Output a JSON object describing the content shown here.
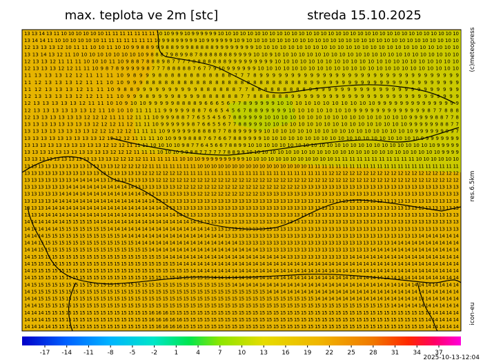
{
  "header": {
    "title": "max. teplota ve 2m [stc]",
    "date": "streda 15.10.2025"
  },
  "credits": {
    "copyright": "(c)meteopress",
    "resolution": "res.6.5km",
    "model": "icon-eu",
    "issued": "2025-10-13-12:04"
  },
  "map": {
    "rows": [
      "13 13 14 13 11 10 10 10 10 10 10 11 11 11 11 11 11 11 10 10 9 9 9 10 9 9 9 9 9 9 10 10 10 10 10 10 10 10 10 10 10 10 10 10 10 10 10 10 10 10 10 10 10 10 10 10 10 10 10 10 10 10 10",
      "13 14 14 11 10 10 10 10 10 10 11 11 11 11 11 11 11 10 9 9 8 9 9 9 9 9 10 9 9 9 9 9 9 10 9 10 10 10 10 10 10 10 10 10 10 10 10 10 10 10 10 10 10 10 10 10 10 10 10 10 10 10 10",
      "12 13 13 13 12 10 11 11 10 10 11 10 10 9 9 8 8 9 9 9 8 8 9 9 9 8 8 8 8 8 9 9 9 9 9 9 9 9 10 10 10 10 10 10 10 10 10 10 10 10 10 10 10 10 10 10 10 10 10 10 10 10 10",
      "13 13 14 13 12 11 10 10 10 10 10 10 10 10 10 9 8 8 8 7 9 8 9 9 8 7 8 8 8 8 8 8 8 9 9 9 9 10 10 9 10 10 10 10 10 10 10 10 10 10 10 10 10 10 10 10 10 10 10 10 10 10 10",
      "12 13 13 12 11 11 11 10 10 10 11 10 9 8 8 7 8 8 8 9 8 7 7 7 7 8 8 8 8 8 8 8 9 9 9 9 9 9 9 9 9 10 10 10 10 10 10 10 10 10 10 10 10 10 10 10 10 10 10 10 10 10 10",
      "12 13 13 13 12 12 11 11 10 9 8 7 8 9 9 9 9 9 8 7 7 7 8 8 8 8 8 7 6 7 7 9 10 9 9 9 9 9 9 10 10 10 10 10 10 10 10 10 10 10 10 10 10 10 10 10 10 10 10 10 10 10 10",
      "11 13 13 13 12 12 11 11 11 10 9 8 9 9 9 8 8 8 8 8 8 8 8 8 8 8 8 7 7 7 8 9 9 9 9 9 9 9 9 9 9 9 9 9 9 9 9 9 9 9 9 9 9 9 9 9 9 9 9 9 9 9 9",
      "11 12 13 13 13 12 11 11 10 10 9 9 9 8 8 8 8 8 8 8 8 8 8 8 8 8 8 8 8 8 8 8 8 8 8 8 8 8 8 9 9 9 9 9 9 9 9 9 9 9 9 9 9 9 9 9 9 9 9 9 9 9 9",
      "11 12 13 13 13 12 11 11 10 9 8 8 9 9 9 9 9 9 9 9 9 9 8 8 8 8 8 8 7 7 8 8 8 8 8 8 8 8 8 9 9 9 9 9 9 9 9 9 9 9 9 9 9 9 9 9 9 9 9 9 9 9 9",
      "12 13 13 13 13 12 12 11 11 10 9 9 9 8 9 9 9 9 8 9 9 9 8 8 8 8 8 8 7 7 8 8 8 8 8 8 9 9 9 9 9 9 9 9 9 9 9 9 9 9 9 9 9 9 9 9 9 9 9 9 9 9 9",
      "12 13 13 13 13 13 12 11 11 10 10 9 10 10 9 9 9 9 9 8 8 8 8 9 6 6 6 5 6 7 7 8 9 9 9 9 9 10 10 10 10 10 10 10 10 10 10 10 9 9 9 9 9 9 9 9 9 9 9 9 9 9 9",
      "12 13 13 13 13 13 13 12 11 10 10 10 11 11 11 9 9 9 9 9 8 8 7 6 6 5 4 5 6 7 8 8 9 9 9 9 9 10 10 10 10 10 10 10 9 9 9 9 9 9 9 9 9 9 9 9 9 8 7 7 8 8 8",
      "12 13 13 13 13 13 13 12 12 12 11 11 12 11 11 10 9 9 9 8 8 7 7 6 5 5 4 5 6 7 8 8 9 9 9 9 10 10 10 10 10 10 10 10 10 10 10 10 10 10 10 10 10 9 9 9 9 9 8 8 7 7 8",
      "13 13 13 13 13 13 13 13 12 12 12 11 12 11 11 10 9 9 9 9 9 9 8 7 6 6 5 5 6 7 7 8 8 9 9 9 10 10 10 10 10 10 10 10 10 10 10 10 10 10 10 10 10 9 9 9 9 9 9 8 8 7 7",
      "13 13 13 13 13 13 13 13 12 12 12 12 12 11 11 11 10 9 9 9 9 9 9 8 8 8 8 7 7 8 8 9 9 9 9 9 10 10 10 10 10 10 10 10 10 10 10 10 10 10 10 10 10 10 9 9 9 9 9 9 9 9 7",
      "13 13 13 13 13 13 13 13 13 12 12 12 12 11 11 11 10 10 9 9 9 8 8 8 7 6 7 6 6 7 8 8 9 9 9 9 10 10 10 10 10 10 10 10 10 10 10 10 10 10 10 10 10 10 10 9 9 9 9 9 9 9 9",
      "13 13 13 13 13 13 13 13 13 13 12 12 12 11 11 11 10 10 10 10 9 8 7 7 6 4 5 6 6 7 8 8 9 9 10 10 10 10 10 10 10 10 10 10 10 10 10 10 10 10 10 10 10 10 10 10 10 10 9 9 9 9 9",
      "13 13 13 13 13 13 13 13 13 13 13 12 12 12 11 11 11 10 10 10 9 9 8 8 7 7 7 7 7 7 8 8 9 9 10 10 10 10 10 10 10 10 10 10 10 10 10 10 10 10 10 10 10 10 10 10 10 10 10 9 9 9 9",
      "13 13 13 13 13 13 13 13 13 13 13 13 12 12 12 12 11 11 11 11 11 10 10 10 9 9 9 9 9 9 9 9 9 9 10 10 10 10 10 10 10 10 10 10 10 10 11 11 11 11 11 11 11 11 11 11 11 10 10 10 10 10 10",
      "13 13 13 13 13 13 13 13 13 13 13 13 13 12 12 12 12 12 11 11 11 11 11 11 11 10 10 10 10 10 10 10 10 10 10 10 10 10 10 10 10 11 11 11 11 11 11 11 11 11 11 11 11 11 11 11 11 11 11 11 11 11 11",
      "13 13 13 13 13 13 13 13 13 13 13 13 13 13 13 13 13 12 12 12 12 12 12 11 11 11 11 11 11 11 11 11 11 11 11 11 11 11 11 11 11 11 11 11 12 12 12 12 12 12 12 12 12 12 12 12 12 12 12 12 12 12 12",
      "13 13 13 13 13 13 13 14 14 14 14 13 13 13 13 13 13 13 13 12 12 12 12 12 12 12 12 12 12 12 12 12 12 12 12 12 12 12 12 12 12 12 12 12 12 12 12 12 12 12 12 12 12 12 12 12 12 12 12 12 12 12 12",
      "13 13 13 13 13 13 14 14 14 14 14 14 14 14 14 14 13 13 13 13 13 13 12 12 12 12 12 12 12 12 12 12 12 12 12 12 12 12 12 12 13 13 13 13 13 13 13 13 13 13 13 13 13 13 13 13 13 13 13 13 13 13 13",
      "13 13 13 13 13 14 14 14 14 14 14 14 14 14 14 14 14 14 13 13 13 13 13 13 13 12 12 12 12 12 12 12 12 12 13 13 13 13 13 13 13 13 13 13 13 13 13 13 13 13 13 13 13 13 13 13 13 13 13 13 13 13 13",
      "13 13 13 13 14 14 14 14 14 14 14 14 14 14 14 14 14 14 14 13 13 13 13 13 13 13 13 13 13 13 13 13 13 13 13 13 13 13 13 13 13 13 13 13 13 13 13 13 13 13 13 13 13 13 13 13 13 13 13 13 13 13 13",
      "13 13 13 14 14 14 14 14 14 14 14 14 14 14 14 14 14 14 14 14 14 13 13 13 13 13 13 13 13 13 13 13 13 13 13 13 13 13 13 13 13 13 13 13 13 13 13 13 13 13 13 13 13 13 13 13 13 13 13 13 13 13 13",
      "13 13 14 14 14 14 14 14 14 14 14 14 14 14 14 14 14 14 14 14 14 14 14 13 13 13 13 13 13 13 13 13 13 13 13 13 13 13 13 13 13 13 13 13 13 13 13 13 13 13 13 13 13 13 13 13 13 13 13 13 13 13 13",
      "14 14 14 14 14 14 15 15 15 15 14 14 14 14 14 14 14 14 14 14 14 14 14 14 14 13 13 13 13 13 13 13 13 13 13 13 13 13 13 13 13 13 13 13 13 13 13 13 13 13 13 13 13 13 13 13 13 13 13 13 13 13 13",
      "14 14 14 14 14 15 15 15 15 15 15 15 14 14 14 14 14 14 14 14 14 14 14 14 14 14 14 13 13 13 13 13 13 13 13 13 13 13 13 13 13 13 13 13 13 13 13 13 13 13 13 13 13 13 13 13 13 13 13 13 13 13 13",
      "14 14 14 15 15 15 15 15 15 15 15 15 15 15 14 14 14 14 14 14 14 14 14 14 14 14 14 14 14 13 13 13 13 13 13 13 13 13 13 13 13 13 13 13 13 13 13 13 13 13 13 13 13 13 13 13 13 14 14 14 14 14 14",
      "14 14 15 15 15 15 15 15 15 15 15 15 15 15 15 15 14 14 14 14 14 14 14 14 14 14 14 14 14 14 14 13 13 13 13 13 13 13 13 13 13 13 13 13 13 13 13 13 13 13 13 13 13 14 14 14 14 14 14 14 14 14 14",
      "14 14 15 15 15 15 15 15 15 15 15 15 15 15 15 15 15 15 14 14 14 14 14 14 14 14 14 14 14 14 14 14 14 14 13 13 13 13 13 13 13 13 13 13 13 13 13 13 13 13 14 14 14 14 14 14 14 14 14 14 14 14 14",
      "14 15 15 15 15 15 15 15 15 15 15 15 15 15 15 15 15 15 15 15 14 14 14 14 14 14 14 14 14 14 14 14 14 14 14 14 14 14 13 13 13 13 13 13 13 13 13 14 14 14 14 14 14 14 14 14 14 14 14 14 14 14 14",
      "14 15 15 15 15 15 15 15 15 15 15 15 15 15 15 15 15 15 15 15 15 15 14 14 14 14 14 14 14 14 14 14 14 14 14 14 14 14 14 14 14 14 14 14 14 14 14 14 14 14 14 14 14 14 14 14 14 14 14 14 14 14 14",
      "14 15 15 15 15 15 15 15 15 15 15 15 15 15 15 15 15 15 15 15 15 15 15 15 14 14 14 14 14 14 14 14 14 14 14 14 14 14 14 14 14 14 14 14 14 14 14 14 14 14 14 14 14 14 14 14 14 14 14 14 14 14 14",
      "14 15 15 15 15 15 15 15 15 15 15 15 15 15 15 15 15 15 15 15 15 15 15 15 15 15 15 14 14 14 14 14 14 14 14 14 14 14 14 14 14 14 14 14 14 14 14 14 14 14 14 14 14 14 14 14 14 14 14 14 14 14 14",
      "14 15 15 15 15 15 15 15 15 15 15 15 15 15 15 15 15 15 15 15 15 15 15 15 15 15 15 15 15 15 14 14 14 14 14 14 14 14 14 14 14 14 14 14 14 14 14 14 14 14 14 14 14 14 14 14 14 14 14 14 14 14 14",
      "14 15 15 15 15 15 15 15 15 15 15 15 15 15 15 15 15 15 15 15 15 15 15 15 15 15 15 15 15 15 15 15 15 15 15 14 14 14 14 14 14 14 14 14 14 14 14 14 14 14 14 14 14 14 14 14 14 14 14 14 14 14 14",
      "14 14 15 15 15 15 15 15 15 15 15 15 15 15 15 15 15 15 15 15 15 15 15 15 15 15 15 15 15 15 15 15 15 15 15 15 15 15 15 15 15 15 14 14 14 14 14 14 14 14 14 14 14 14 14 14 14 14 14 14 14 14 14",
      "14 14 15 15 15 15 15 15 15 15 15 15 15 15 15 15 15 15 15 15 15 15 15 15 15 15 15 15 15 15 15 15 15 15 15 15 15 15 15 15 15 15 15 15 15 15 15 15 15 15 15 15 15 14 14 14 14 14 14 14 14 14 14",
      "14 14 14 15 15 15 15 15 15 15 15 15 15 15 15 15 15 15 16 16 16 15 15 15 15 15 15 15 15 15 15 15 15 15 15 15 15 15 15 15 15 15 15 15 15 15 15 15 15 15 15 15 15 15 15 15 15 15 14 14 14 14 14",
      "14 14 14 15 15 15 15 15 15 15 15 15 15 15 15 15 15 15 16 16 16 16 16 15 15 15 15 15 15 15 15 15 15 15 15 15 15 15 15 15 15 15 15 15 15 15 15 15 15 15 15 15 15 15 15 15 15 15 14 14 14 14 14",
      "14 14 14 14 15 15 15 15 15 15 15 15 15 15 15 15 15 15 15 16 16 16 16 15 15 15 15 15 15 15 15 15 15 15 15 15 15 15 15 15 15 15 15 15 15 15 15 15 15 15 15 15 15 15 15 15 15 15 14 14 14 14 14"
    ]
  },
  "legend": {
    "ticks": [
      -17,
      -14,
      -11,
      -8,
      -5,
      -2,
      1,
      4,
      7,
      10,
      13,
      16,
      19,
      22,
      25,
      28,
      31,
      34,
      37
    ]
  }
}
